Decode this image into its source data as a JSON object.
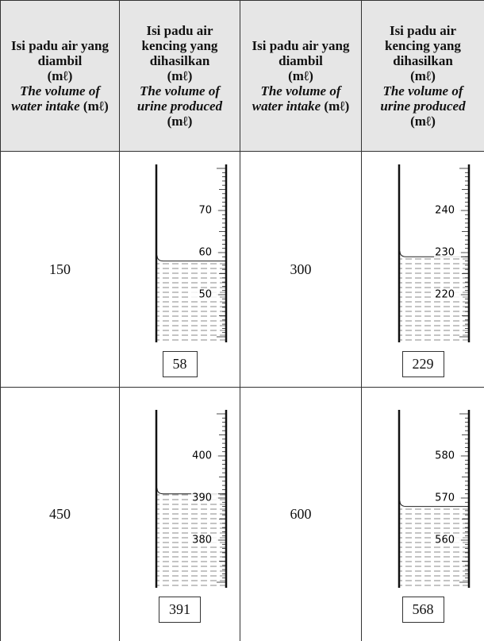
{
  "header": [
    {
      "malay": "Isi padu air yang diambil",
      "malay_unit": "(mℓ)",
      "english": "The volume of water intake",
      "english_unit": "(mℓ)"
    },
    {
      "malay": "Isi padu air kencing yang dihasilkan",
      "malay_unit": "(mℓ)",
      "english": "The volume of urine produced",
      "english_unit": "(mℓ)"
    },
    {
      "malay": "Isi padu air yang diambil",
      "malay_unit": "(mℓ)",
      "english": "The volume of water intake",
      "english_unit": "(mℓ)"
    },
    {
      "malay": "Isi padu air kencing yang dihasilkan",
      "malay_unit": "(mℓ)",
      "english": "The volume of urine produced",
      "english_unit": "(mℓ)"
    }
  ],
  "table": {
    "rows": [
      [
        150,
        {
          "scale": [
            70,
            60,
            50
          ],
          "reading": 58
        },
        300,
        {
          "scale": [
            240,
            230,
            220
          ],
          "reading": 229
        }
      ],
      [
        450,
        {
          "scale": [
            400,
            390,
            380
          ],
          "reading": 391
        },
        600,
        {
          "scale": [
            580,
            570,
            560
          ],
          "reading": 568
        }
      ]
    ]
  }
}
